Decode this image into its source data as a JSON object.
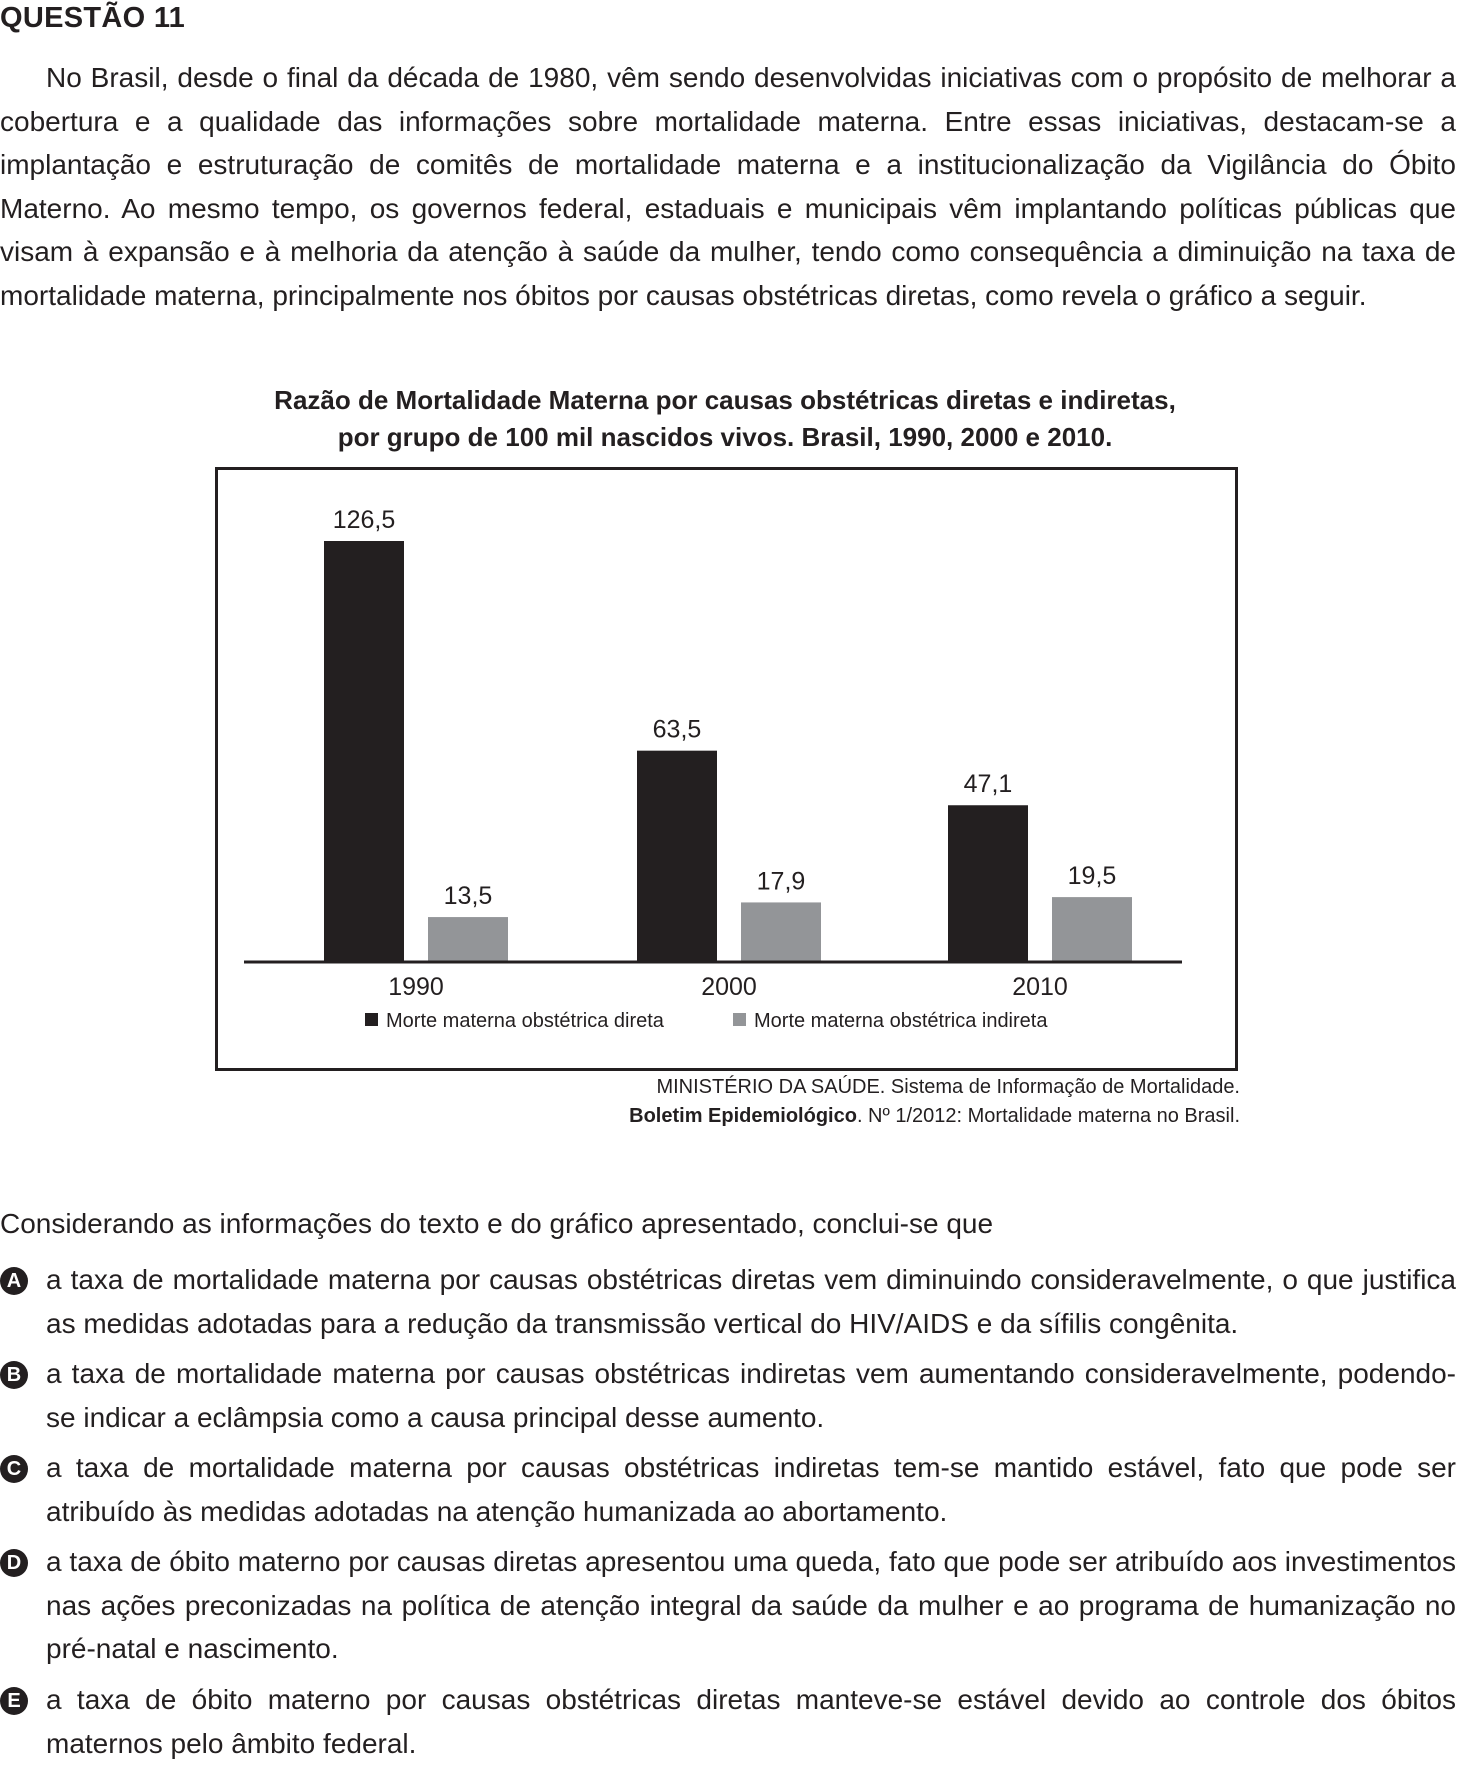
{
  "question": {
    "title": "QUESTÃO 11",
    "intro": "No Brasil, desde o final da década de 1980, vêm sendo desenvolvidas iniciativas com o propósito de melhorar a cobertura e a qualidade das informações sobre mortalidade materna. Entre essas iniciativas, destacam-se a implantação e  estruturação de comitês de mortalidade materna e a institucionalização da Vigilância do Óbito Materno. Ao mesmo tempo, os governos federal, estaduais e municipais vêm implantando políticas públicas que visam à expansão e à melhoria da atenção à saúde da mulher, tendo como consequência a diminuição na taxa de mortalidade materna, principalmente nos óbitos por causas obstétricas diretas, como revela o gráfico a seguir.",
    "stem": "Considerando as informações do texto e do gráfico apresentado, conclui-se que",
    "options": [
      {
        "letter": "A",
        "text": "a taxa de mortalidade materna por causas obstétricas diretas vem diminuindo consideravelmente, o que justifica as medidas adotadas para a redução da transmissão vertical do HIV/AIDS e da sífilis congênita."
      },
      {
        "letter": "B",
        "text": "a taxa de mortalidade materna por causas obstétricas indiretas vem aumentando consideravelmente, podendo-se indicar a eclâmpsia como a causa principal desse aumento."
      },
      {
        "letter": "C",
        "text": "a taxa de mortalidade materna por causas obstétricas indiretas tem-se mantido estável, fato que pode ser atribuído às medidas adotadas na atenção humanizada ao abortamento."
      },
      {
        "letter": "D",
        "text": "a taxa de óbito materno por causas diretas apresentou uma queda, fato que pode ser atribuído aos investimentos nas ações preconizadas na política de atenção integral da saúde da mulher e ao programa de humanização no pré-natal e nascimento."
      },
      {
        "letter": "E",
        "text": "a taxa de óbito materno por causas obstétricas diretas manteve-se estável  devido ao controle dos óbitos maternos pelo âmbito federal."
      }
    ]
  },
  "chart_data": {
    "type": "bar",
    "title_line1": "Razão de Mortalidade Materna por causas obstétricas diretas e indiretas,",
    "title_line2": "por grupo de 100 mil nascidos vivos. Brasil, 1990, 2000 e 2010.",
    "categories": [
      "1990",
      "2000",
      "2010"
    ],
    "series": [
      {
        "name": "Morte materna obstétrica direta",
        "color": "#231f20",
        "values": [
          126.5,
          63.5,
          47.1
        ],
        "labels": [
          "126,5",
          "63,5",
          "47,1"
        ]
      },
      {
        "name": "Morte materna obstétrica indireta",
        "color": "#939598",
        "values": [
          13.5,
          17.9,
          19.5
        ],
        "labels": [
          "13,5",
          "17,9",
          "19,5"
        ]
      }
    ],
    "ylim": [
      0,
      126.5
    ],
    "grid": false,
    "legend_position": "bottom"
  },
  "source": {
    "line1": "MINISTÉRIO DA SAÚDE. Sistema de Informação de Mortalidade.",
    "line2_bold": "Boletim Epidemiológico",
    "line2_rest": ". Nº 1/2012: Mortalidade materna no Brasil."
  }
}
